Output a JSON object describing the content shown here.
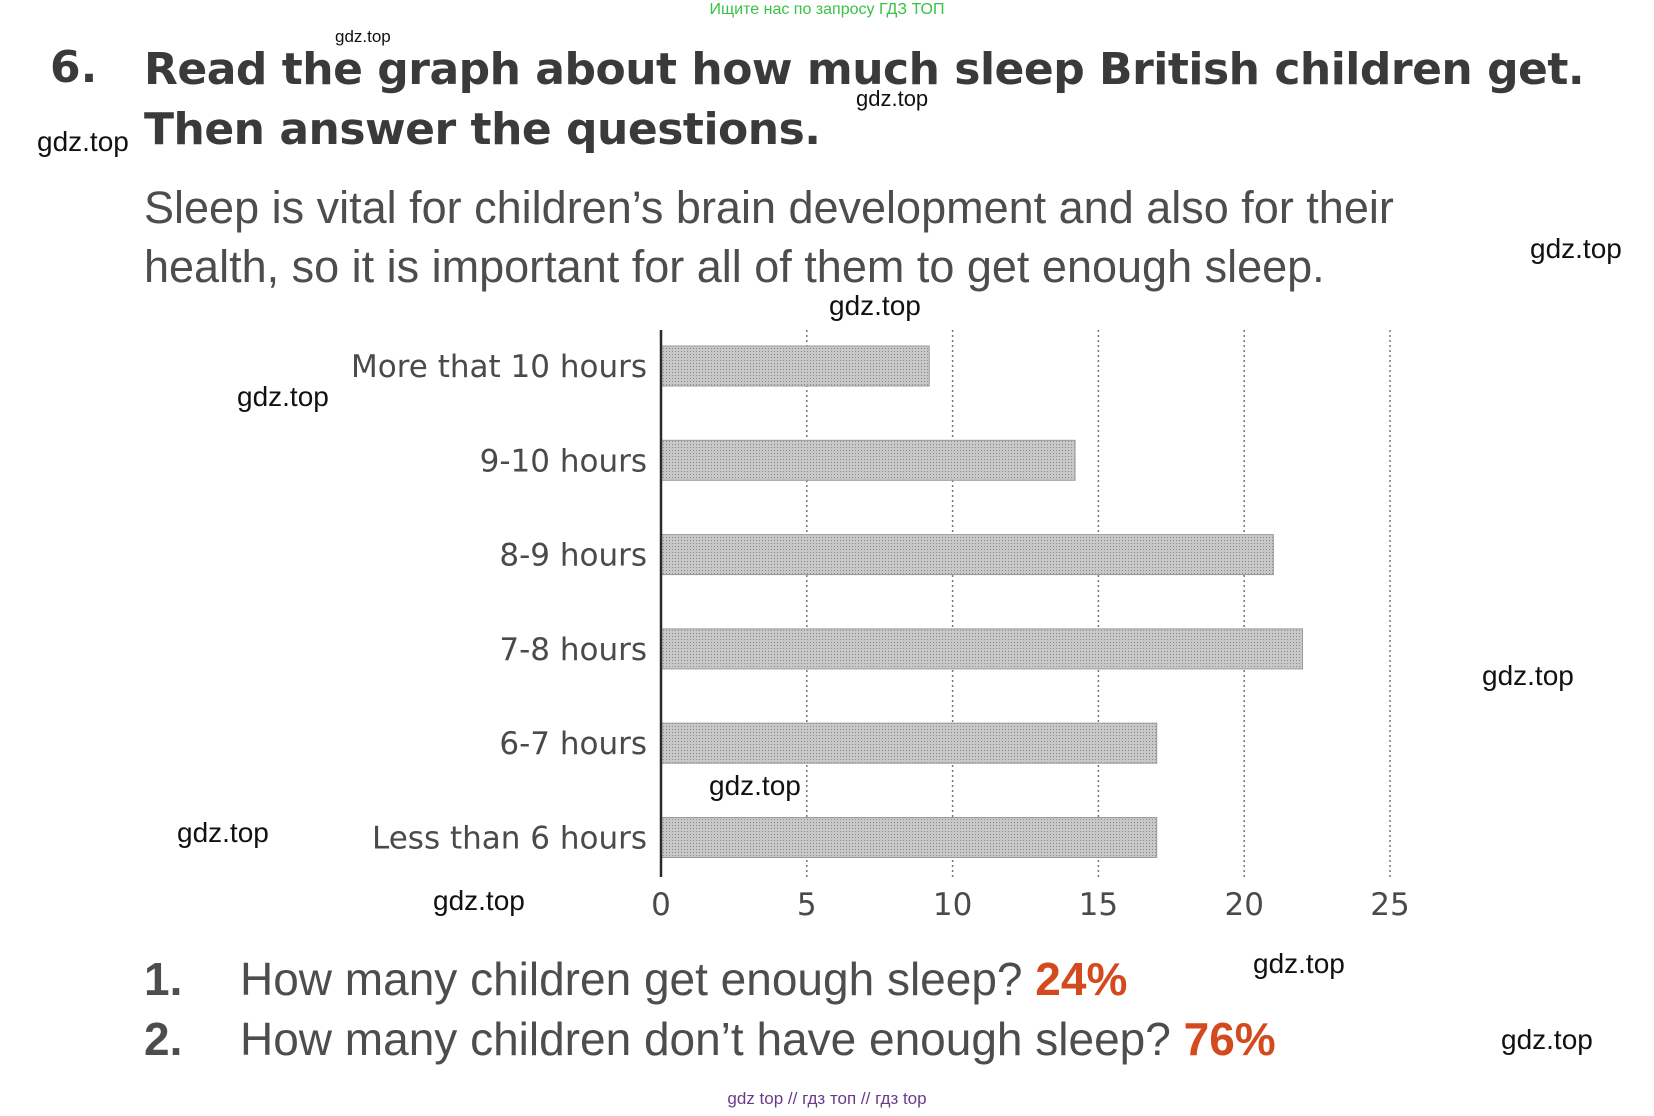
{
  "banner": "Ищите нас по запросу ГДЗ ТОП",
  "exercise": {
    "number": "6.",
    "heading_line1": "Read the graph about how much sleep British children get.",
    "heading_line2": "Then answer the questions.",
    "intro_line1": "Sleep is vital for children’s brain development and also for their",
    "intro_line2": "health, so it is important for all of them to get enough sleep."
  },
  "chart_data": {
    "type": "bar",
    "orientation": "horizontal",
    "categories": [
      "More that 10 hours",
      "9-10 hours",
      "8-9 hours",
      "7-8 hours",
      "6-7 hours",
      "Less than 6 hours"
    ],
    "values": [
      9.2,
      14.2,
      21,
      22,
      17,
      17
    ],
    "xlim": [
      0,
      25
    ],
    "xticks": [
      "0",
      "5",
      "10",
      "15",
      "20",
      "25"
    ],
    "grid": "vertical dotted",
    "title": "",
    "xlabel": "",
    "ylabel": ""
  },
  "questions": [
    {
      "number": "1.",
      "text": "How many children get enough sleep?",
      "answer": "24%"
    },
    {
      "number": "2.",
      "text": "How many children don’t have enough sleep?",
      "answer": "76%"
    }
  ],
  "watermarks": [
    "gdz.top",
    "gdz.top",
    "gdz.top",
    "gdz.top",
    "gdz.top",
    "gdz.top",
    "gdz.top",
    "gdz.top",
    "gdz.top",
    "gdz.top",
    "gdz.top",
    "gdz.top"
  ],
  "footer": "gdz top  //  гдз топ  //  гдз top",
  "colors": {
    "bar_fill": "#bdbdbd",
    "answer": "#d44a1f",
    "banner": "#39c244",
    "footer": "#6a3a8a"
  }
}
